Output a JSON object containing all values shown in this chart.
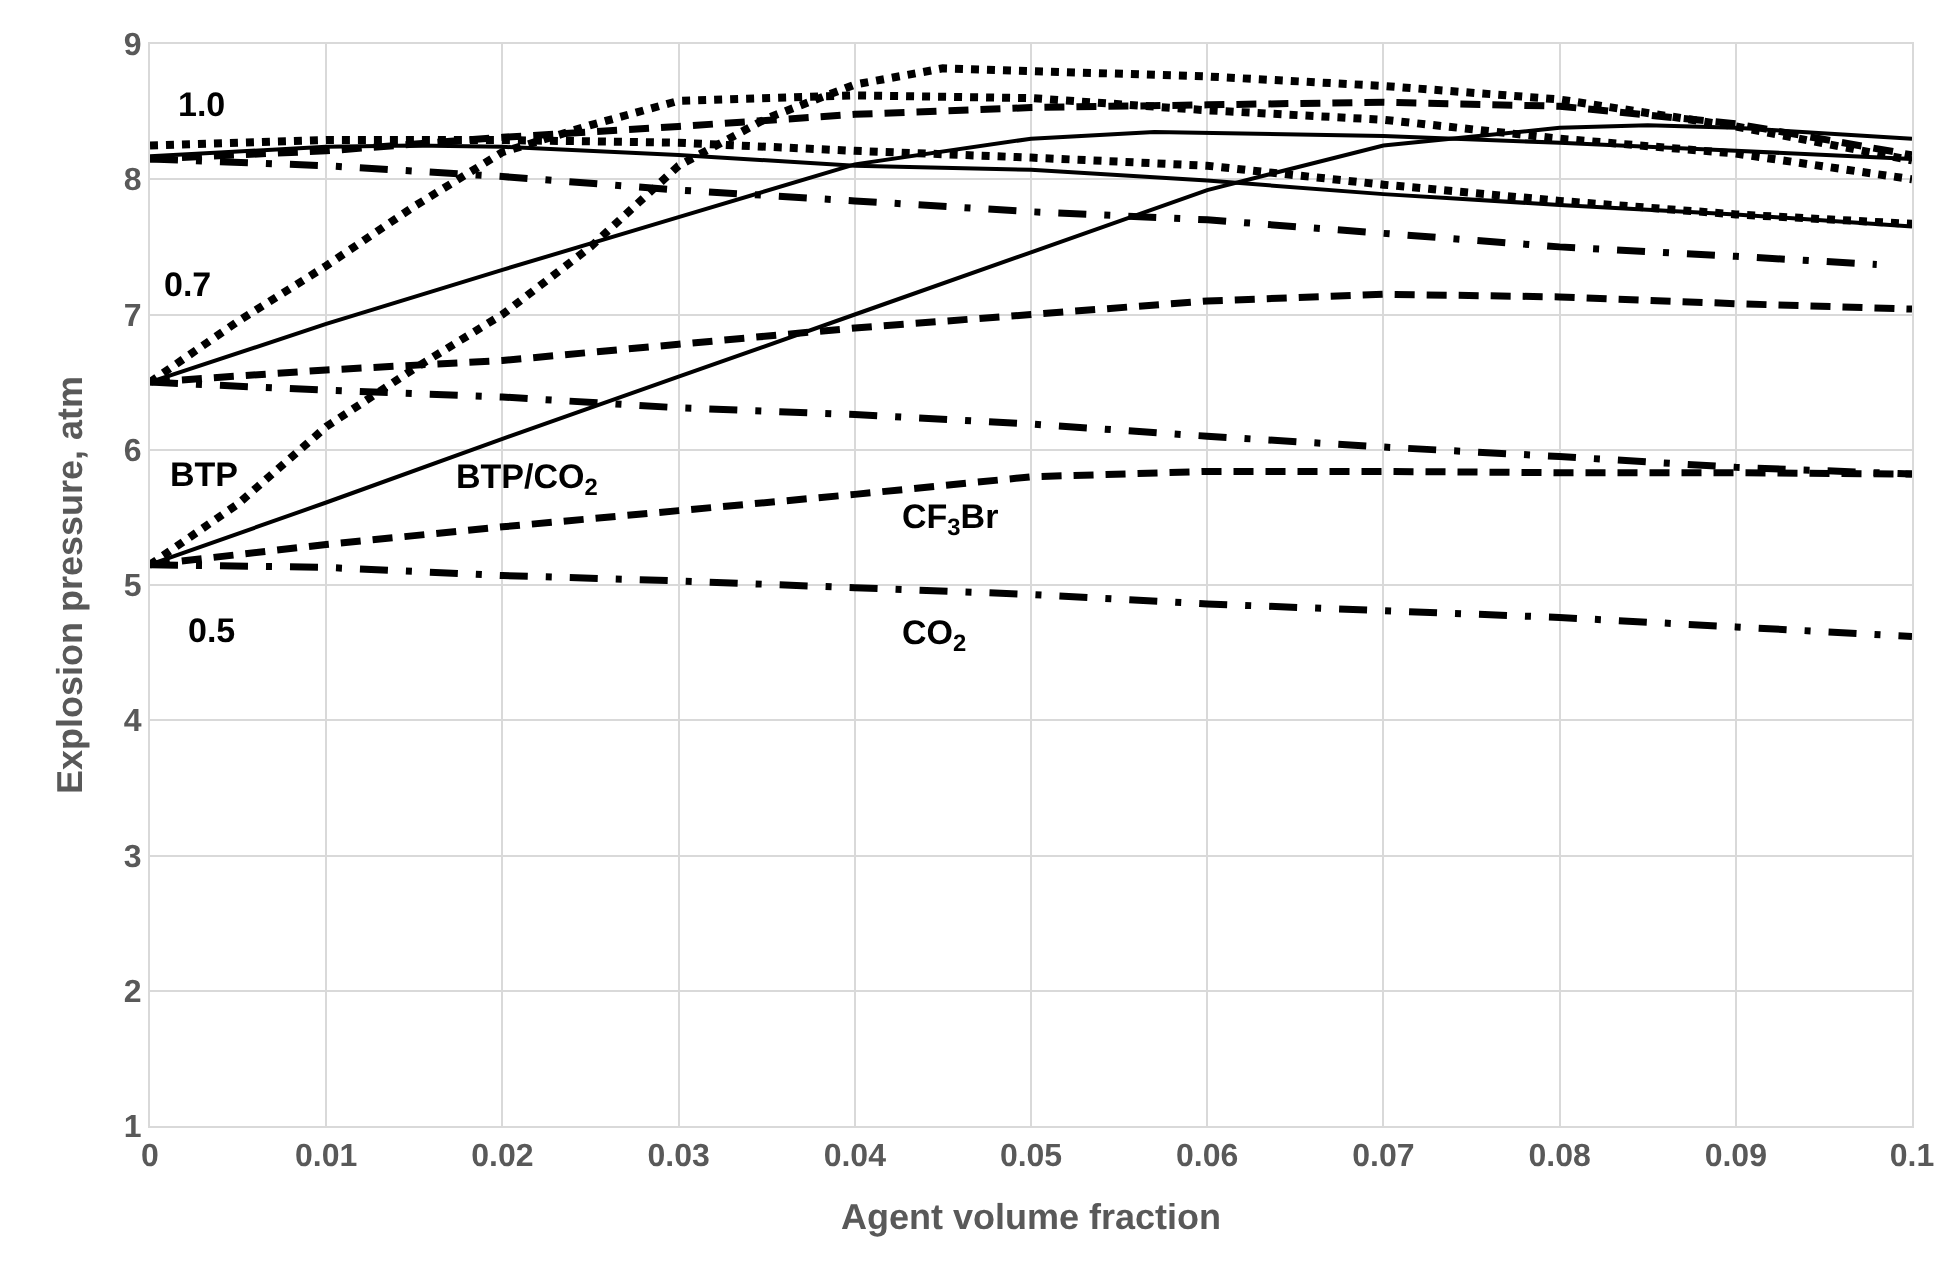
{
  "chart_data": {
    "type": "line",
    "xlabel": "Agent volume fraction",
    "ylabel": "Explosion pressure, atm",
    "xlim": [
      0,
      0.1
    ],
    "xticks": [
      0,
      0.01,
      0.02,
      0.03,
      0.04,
      0.05,
      0.06,
      0.07,
      0.08,
      0.09,
      {
        "value": 0.1,
        "label": "0.1"
      }
    ],
    "ylim": [
      1,
      9
    ],
    "yticks": [
      1,
      2,
      3,
      4,
      5,
      6,
      7,
      8,
      9
    ],
    "grid": true,
    "marker": "none",
    "series": [
      {
        "color": "#000000",
        "line_style": "dotted",
        "x": [
          0,
          0.01,
          0.02,
          0.03,
          0.04,
          0.05,
          0.06,
          0.07,
          0.08,
          0.09,
          0.1
        ],
        "values": [
          8.25,
          8.29,
          8.29,
          8.27,
          8.21,
          8.16,
          8.1,
          7.96,
          7.84,
          7.74,
          7.67
        ]
      },
      {
        "color": "#000000",
        "line_style": "solid",
        "x": [
          0,
          0.01,
          0.015,
          0.02,
          0.03,
          0.04,
          0.05,
          0.06,
          0.07,
          0.08,
          0.09,
          0.1
        ],
        "values": [
          8.17,
          8.24,
          8.25,
          8.24,
          8.18,
          8.1,
          8.07,
          7.99,
          7.89,
          7.81,
          7.74,
          7.65
        ]
      },
      {
        "color": "#000000",
        "line_style": "dashed",
        "x": [
          0,
          0.01,
          0.02,
          0.03,
          0.04,
          0.05,
          0.06,
          0.07,
          0.08,
          0.09,
          0.1
        ],
        "values": [
          8.15,
          8.21,
          8.31,
          8.39,
          8.48,
          8.53,
          8.55,
          8.57,
          8.54,
          8.41,
          8.18
        ]
      },
      {
        "color": "#000000",
        "line_style": "dashdot",
        "x": [
          0,
          0.01,
          0.02,
          0.03,
          0.04,
          0.05,
          0.06,
          0.07,
          0.08,
          0.09,
          0.098
        ],
        "values": [
          8.15,
          8.1,
          8.02,
          7.92,
          7.84,
          7.76,
          7.7,
          7.6,
          7.5,
          7.43,
          7.37
        ]
      },
      {
        "color": "#000000",
        "line_style": "dotted",
        "x": [
          0,
          0.005,
          0.01,
          0.015,
          0.02,
          0.025,
          0.03,
          0.04,
          0.05,
          0.06,
          0.07,
          0.08,
          0.09,
          0.1
        ],
        "values": [
          6.5,
          6.95,
          7.36,
          7.8,
          8.2,
          8.4,
          8.58,
          8.62,
          8.6,
          8.51,
          8.44,
          8.3,
          8.19,
          8.0
        ]
      },
      {
        "color": "#000000",
        "line_style": "solid",
        "x": [
          0,
          0.01,
          0.02,
          0.03,
          0.04,
          0.05,
          0.057,
          0.07,
          0.08,
          0.09,
          0.1
        ],
        "values": [
          6.5,
          6.93,
          7.33,
          7.72,
          8.11,
          8.3,
          8.35,
          8.32,
          8.27,
          8.21,
          8.15
        ]
      },
      {
        "color": "#000000",
        "line_style": "dashed",
        "x": [
          0,
          0.01,
          0.02,
          0.03,
          0.04,
          0.05,
          0.06,
          0.07,
          0.08,
          0.09,
          0.1
        ],
        "values": [
          6.5,
          6.59,
          6.66,
          6.78,
          6.9,
          7.0,
          7.1,
          7.15,
          7.13,
          7.08,
          7.04
        ]
      },
      {
        "color": "#000000",
        "line_style": "dashdot",
        "x": [
          0,
          0.01,
          0.02,
          0.03,
          0.04,
          0.05,
          0.06,
          0.07,
          0.08,
          0.09,
          0.1
        ],
        "values": [
          6.5,
          6.44,
          6.39,
          6.31,
          6.26,
          6.19,
          6.1,
          6.02,
          5.95,
          5.87,
          5.82
        ]
      },
      {
        "color": "#000000",
        "line_style": "dotted",
        "x": [
          0,
          0.005,
          0.01,
          0.015,
          0.02,
          0.025,
          0.03,
          0.035,
          0.04,
          0.045,
          0.05,
          0.06,
          0.07,
          0.08,
          0.09,
          0.1
        ],
        "values": [
          5.15,
          5.6,
          6.17,
          6.6,
          7.0,
          7.5,
          8.1,
          8.45,
          8.7,
          8.82,
          8.8,
          8.76,
          8.69,
          8.59,
          8.39,
          8.14
        ]
      },
      {
        "color": "#000000",
        "line_style": "solid",
        "x": [
          0,
          0.01,
          0.02,
          0.03,
          0.04,
          0.05,
          0.06,
          0.07,
          0.08,
          0.085,
          0.09,
          0.1
        ],
        "values": [
          5.15,
          5.61,
          6.08,
          6.54,
          7.0,
          7.46,
          7.92,
          8.25,
          8.38,
          8.4,
          8.38,
          8.3
        ]
      },
      {
        "color": "#000000",
        "line_style": "dashed",
        "x": [
          0,
          0.01,
          0.02,
          0.03,
          0.04,
          0.05,
          0.06,
          0.07,
          0.08,
          0.09,
          0.1
        ],
        "values": [
          5.15,
          5.3,
          5.43,
          5.55,
          5.67,
          5.8,
          5.84,
          5.84,
          5.83,
          5.83,
          5.82
        ]
      },
      {
        "color": "#000000",
        "line_style": "dashdot",
        "x": [
          0,
          0.01,
          0.02,
          0.03,
          0.04,
          0.05,
          0.06,
          0.07,
          0.08,
          0.09,
          0.1
        ],
        "values": [
          5.15,
          5.13,
          5.07,
          5.03,
          4.98,
          4.93,
          4.86,
          4.81,
          4.76,
          4.69,
          4.62
        ]
      }
    ],
    "annotations": [
      "1.0",
      "0.7",
      "BTP",
      "BTP/CO$_{2}$",
      "CF$_{3}$Br",
      "CO$_{2}$",
      "0.5"
    ]
  }
}
